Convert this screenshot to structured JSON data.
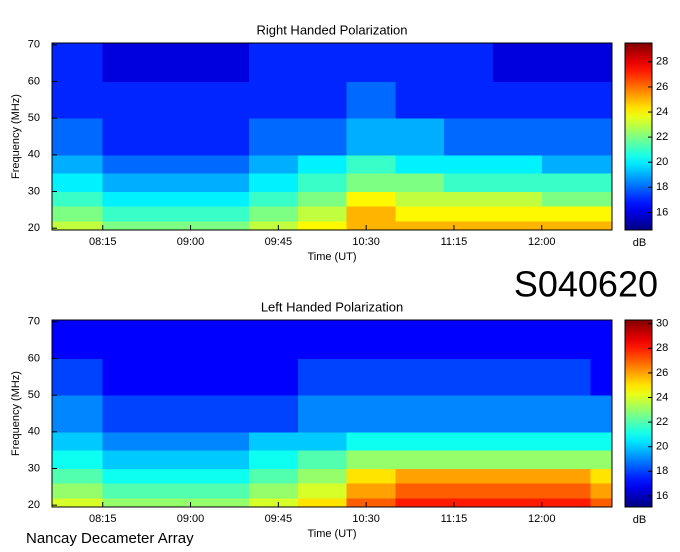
{
  "chart_data": [
    {
      "type": "heatmap",
      "title": "Right Handed Polarization",
      "xlabel": "Time (UT)",
      "ylabel": "Frequency (MHz)",
      "colorbar_label": "dB",
      "colormap": "jet",
      "xlim": [
        469,
        756
      ],
      "xticks": [
        {
          "value": 495,
          "label": "08:15"
        },
        {
          "value": 540,
          "label": "09:00"
        },
        {
          "value": 585,
          "label": "09:45"
        },
        {
          "value": 630,
          "label": "10:30"
        },
        {
          "value": 675,
          "label": "11:15"
        },
        {
          "value": 720,
          "label": "12:00"
        }
      ],
      "ylim": [
        19.5,
        70.5
      ],
      "yticks": [
        20,
        30,
        40,
        50,
        60,
        70
      ],
      "zlim": [
        14.6,
        29.5
      ],
      "zticks": [
        16,
        18,
        20,
        22,
        24,
        26,
        28
      ],
      "x_bins": [
        469,
        495,
        520,
        545,
        570,
        595,
        620,
        645,
        670,
        695,
        720,
        745,
        756
      ],
      "y_bins": [
        19.5,
        22,
        26,
        30,
        35,
        40,
        50,
        60,
        70.5
      ],
      "z": [
        [
          23,
          22,
          22,
          22,
          23,
          24,
          25,
          25,
          25,
          25,
          25,
          25
        ],
        [
          22,
          21,
          21,
          21,
          22,
          23,
          25,
          24,
          24,
          24,
          24,
          24
        ],
        [
          21,
          20,
          20,
          20,
          21,
          22,
          24,
          23,
          23,
          23,
          22,
          22
        ],
        [
          20,
          19,
          19,
          19,
          20,
          21,
          22,
          22,
          21,
          21,
          21,
          21
        ],
        [
          19,
          18,
          18,
          18,
          19,
          20,
          21,
          20,
          20,
          20,
          19,
          19
        ],
        [
          18,
          17,
          17,
          17,
          18,
          18,
          19,
          19,
          18,
          18,
          18,
          18
        ],
        [
          17,
          17,
          17,
          17,
          17,
          17,
          18,
          17,
          17,
          17,
          17,
          17
        ],
        [
          17,
          16,
          16,
          16,
          17,
          17,
          17,
          17,
          17,
          16,
          16,
          16
        ]
      ]
    },
    {
      "type": "heatmap",
      "title": "Left Handed Polarization",
      "xlabel": "Time (UT)",
      "ylabel": "Frequency (MHz)",
      "colorbar_label": "dB",
      "colormap": "jet",
      "xlim": [
        469,
        756
      ],
      "xticks": [
        {
          "value": 495,
          "label": "08:15"
        },
        {
          "value": 540,
          "label": "09:00"
        },
        {
          "value": 585,
          "label": "09:45"
        },
        {
          "value": 630,
          "label": "10:30"
        },
        {
          "value": 675,
          "label": "11:15"
        },
        {
          "value": 720,
          "label": "12:00"
        }
      ],
      "ylim": [
        19.5,
        70.5
      ],
      "yticks": [
        20,
        30,
        40,
        50,
        60,
        70
      ],
      "zlim": [
        15.1,
        30.3
      ],
      "zticks": [
        16,
        18,
        20,
        22,
        24,
        26,
        28,
        30
      ],
      "x_bins": [
        469,
        495,
        520,
        545,
        570,
        595,
        620,
        645,
        670,
        695,
        720,
        745,
        756
      ],
      "y_bins": [
        19.5,
        22,
        26,
        30,
        35,
        40,
        50,
        60,
        70.5
      ],
      "z": [
        [
          24,
          23,
          23,
          23,
          24,
          25,
          27,
          28,
          28,
          28,
          28,
          27
        ],
        [
          23,
          22,
          22,
          22,
          23,
          24,
          26,
          27,
          27,
          27,
          27,
          26
        ],
        [
          22,
          21,
          21,
          21,
          22,
          23,
          25,
          26,
          26,
          26,
          26,
          25
        ],
        [
          21,
          20,
          20,
          20,
          21,
          22,
          23,
          23,
          23,
          23,
          23,
          23
        ],
        [
          20,
          19,
          19,
          19,
          20,
          20,
          21,
          21,
          21,
          21,
          21,
          21
        ],
        [
          19,
          18,
          18,
          18,
          18,
          19,
          19,
          19,
          19,
          19,
          19,
          19
        ],
        [
          18,
          17,
          17,
          17,
          17,
          18,
          18,
          18,
          18,
          18,
          18,
          17
        ],
        [
          17,
          17,
          17,
          17,
          17,
          17,
          17,
          17,
          17,
          17,
          17,
          17
        ]
      ]
    }
  ],
  "label": "S040620",
  "footer": "Nancay Decameter Array"
}
